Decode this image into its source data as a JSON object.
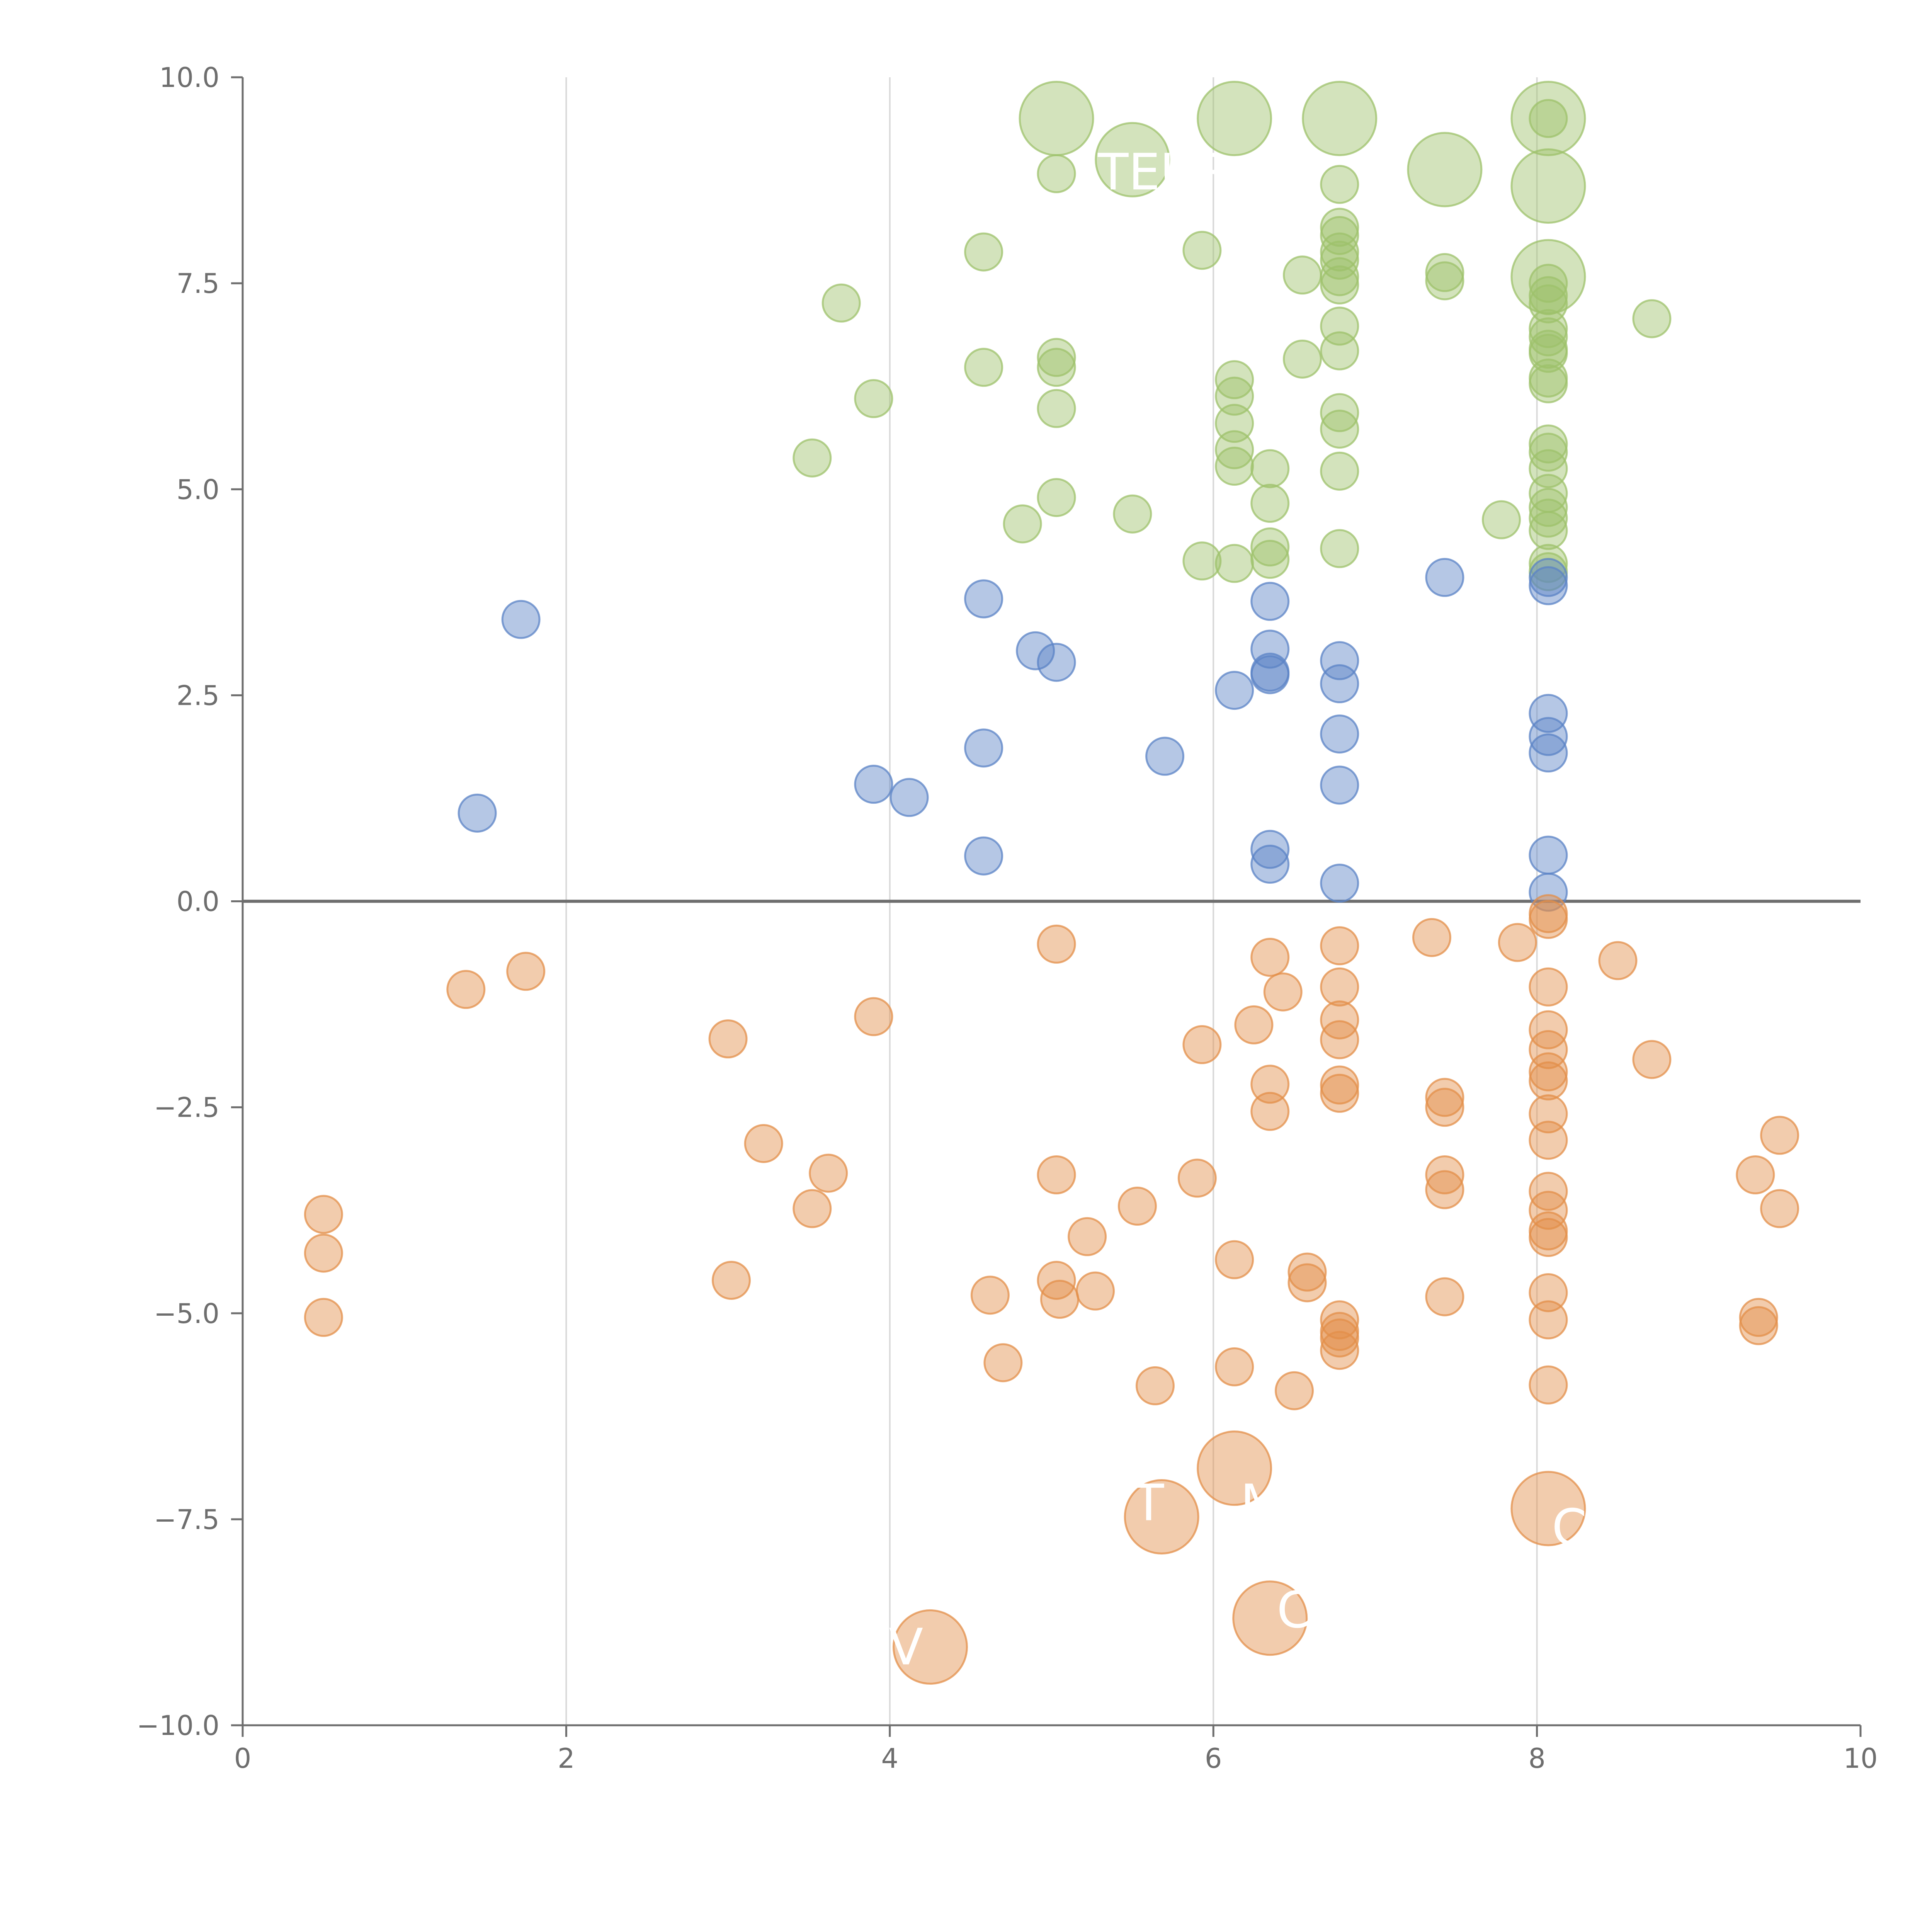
{
  "chart_data": {
    "type": "scatter",
    "title": "",
    "xlabel": "",
    "ylabel": "",
    "xlim": [
      0,
      10
    ],
    "ylim": [
      -10,
      10
    ],
    "x_ticks": [
      "0",
      "2",
      "4",
      "6",
      "8",
      "10"
    ],
    "y_ticks": [
      "10.0",
      "7.5",
      "5.0",
      "2.5",
      "0.0",
      "−2.5",
      "−5.0",
      "−7.5",
      "−10.0"
    ],
    "vertical_gridlines_at": [
      2,
      4,
      6,
      8
    ],
    "zero_line": true,
    "colors": {
      "green": "#9dc26b",
      "blue": "#5b83c6",
      "orange": "#e38f4a",
      "axis": "#6e6e6e",
      "grid": "#d9d9d9",
      "label": "#ffffff"
    },
    "series": [
      {
        "name": "green",
        "points": [
          [
            5.03,
            9.5,
            "big"
          ],
          [
            6.13,
            9.5,
            "big"
          ],
          [
            6.78,
            9.5,
            "big"
          ],
          [
            8.07,
            9.5,
            "big"
          ],
          [
            5.5,
            9.0,
            "big"
          ],
          [
            7.43,
            8.88,
            "big"
          ],
          [
            8.07,
            8.68,
            "big"
          ],
          [
            8.07,
            7.58,
            "big"
          ],
          [
            8.07,
            9.5
          ],
          [
            5.03,
            8.83
          ],
          [
            6.78,
            8.7
          ],
          [
            6.78,
            8.18
          ],
          [
            6.78,
            8.08
          ],
          [
            6.78,
            7.88
          ],
          [
            6.78,
            7.78
          ],
          [
            6.78,
            7.58
          ],
          [
            6.78,
            7.48
          ],
          [
            4.58,
            7.88
          ],
          [
            5.93,
            7.9
          ],
          [
            6.55,
            7.6
          ],
          [
            7.43,
            7.63
          ],
          [
            7.43,
            7.53
          ],
          [
            8.07,
            7.5
          ],
          [
            8.07,
            7.35
          ],
          [
            8.07,
            7.25
          ],
          [
            8.07,
            6.95
          ],
          [
            8.07,
            6.85
          ],
          [
            8.07,
            6.7
          ],
          [
            8.07,
            6.65
          ],
          [
            8.07,
            6.35
          ],
          [
            8.07,
            6.28
          ],
          [
            8.71,
            7.07
          ],
          [
            3.7,
            7.26
          ],
          [
            6.78,
            6.98
          ],
          [
            6.78,
            6.68
          ],
          [
            5.03,
            6.6
          ],
          [
            5.03,
            6.48
          ],
          [
            4.58,
            6.48
          ],
          [
            6.55,
            6.58
          ],
          [
            6.13,
            6.33
          ],
          [
            6.13,
            6.13
          ],
          [
            3.9,
            6.1
          ],
          [
            5.03,
            5.98
          ],
          [
            6.78,
            5.93
          ],
          [
            6.78,
            5.73
          ],
          [
            6.13,
            5.8
          ],
          [
            6.13,
            5.48
          ],
          [
            6.13,
            5.28
          ],
          [
            8.07,
            5.55
          ],
          [
            8.07,
            5.45
          ],
          [
            8.07,
            5.25
          ],
          [
            8.07,
            4.95
          ],
          [
            8.07,
            4.78
          ],
          [
            8.07,
            4.65
          ],
          [
            8.07,
            4.5
          ],
          [
            8.07,
            4.1
          ],
          [
            8.07,
            4.0
          ],
          [
            3.52,
            5.38
          ],
          [
            6.35,
            5.25
          ],
          [
            6.78,
            5.22
          ],
          [
            5.03,
            4.9
          ],
          [
            6.35,
            4.83
          ],
          [
            5.5,
            4.7
          ],
          [
            4.82,
            4.58
          ],
          [
            7.78,
            4.63
          ],
          [
            6.35,
            4.3
          ],
          [
            6.35,
            4.15
          ],
          [
            6.78,
            4.28
          ],
          [
            5.93,
            4.13
          ],
          [
            6.13,
            4.1
          ]
        ]
      },
      {
        "name": "blue",
        "points": [
          [
            1.72,
            3.42
          ],
          [
            1.45,
            1.07
          ],
          [
            4.58,
            3.67
          ],
          [
            4.9,
            3.04
          ],
          [
            5.03,
            2.9
          ],
          [
            3.9,
            1.42
          ],
          [
            4.12,
            1.26
          ],
          [
            4.58,
            1.86
          ],
          [
            4.58,
            0.55
          ],
          [
            5.7,
            1.76
          ],
          [
            6.13,
            2.56
          ],
          [
            6.35,
            3.64
          ],
          [
            6.35,
            3.06
          ],
          [
            6.35,
            2.78
          ],
          [
            6.35,
            2.75
          ],
          [
            6.35,
            0.63
          ],
          [
            6.35,
            0.45
          ],
          [
            6.78,
            2.92
          ],
          [
            6.78,
            2.64
          ],
          [
            6.78,
            2.03
          ],
          [
            6.78,
            1.41
          ],
          [
            6.78,
            0.22
          ],
          [
            7.43,
            3.93
          ],
          [
            8.07,
            3.93
          ],
          [
            8.07,
            3.83
          ],
          [
            8.07,
            2.28
          ],
          [
            8.07,
            2.0
          ],
          [
            8.07,
            1.8
          ],
          [
            8.07,
            0.56
          ],
          [
            8.07,
            0.11
          ]
        ]
      },
      {
        "name": "orange",
        "points": [
          [
            5.68,
            -7.47,
            "big"
          ],
          [
            6.13,
            -6.88,
            "big"
          ],
          [
            8.07,
            -7.37,
            "big"
          ],
          [
            6.35,
            -8.7,
            "big"
          ],
          [
            4.25,
            -9.05,
            "big"
          ],
          [
            0.5,
            -3.8
          ],
          [
            0.5,
            -4.27
          ],
          [
            0.5,
            -5.05
          ],
          [
            1.38,
            -1.07
          ],
          [
            1.75,
            -0.85
          ],
          [
            3.0,
            -1.67
          ],
          [
            3.22,
            -2.94
          ],
          [
            3.02,
            -4.6
          ],
          [
            3.52,
            -3.73
          ],
          [
            3.62,
            -3.3
          ],
          [
            3.9,
            -1.4
          ],
          [
            4.62,
            -4.78
          ],
          [
            4.7,
            -5.6
          ],
          [
            5.03,
            -0.52
          ],
          [
            5.03,
            -3.32
          ],
          [
            5.03,
            -4.6
          ],
          [
            5.05,
            -4.83
          ],
          [
            5.22,
            -4.07
          ],
          [
            5.27,
            -4.73
          ],
          [
            5.53,
            -3.7
          ],
          [
            5.64,
            -5.88
          ],
          [
            5.9,
            -3.36
          ],
          [
            5.93,
            -1.74
          ],
          [
            6.13,
            -4.35
          ],
          [
            6.13,
            -5.65
          ],
          [
            6.25,
            -1.5
          ],
          [
            6.35,
            -0.68
          ],
          [
            6.35,
            -2.22
          ],
          [
            6.35,
            -2.55
          ],
          [
            6.43,
            -1.1
          ],
          [
            6.5,
            -5.94
          ],
          [
            6.58,
            -4.5
          ],
          [
            6.58,
            -4.63
          ],
          [
            6.78,
            -0.54
          ],
          [
            6.78,
            -1.04
          ],
          [
            6.78,
            -1.44
          ],
          [
            6.78,
            -1.68
          ],
          [
            6.78,
            -2.23
          ],
          [
            6.78,
            -2.33
          ],
          [
            6.78,
            -5.08
          ],
          [
            6.78,
            -5.22
          ],
          [
            6.78,
            -5.3
          ],
          [
            6.78,
            -5.45
          ],
          [
            7.35,
            -0.44
          ],
          [
            7.43,
            -2.38
          ],
          [
            7.43,
            -2.5
          ],
          [
            7.43,
            -3.32
          ],
          [
            7.43,
            -3.5
          ],
          [
            7.43,
            -4.8
          ],
          [
            7.88,
            -0.5
          ],
          [
            8.07,
            -0.15
          ],
          [
            8.07,
            -0.22
          ],
          [
            8.07,
            -1.04
          ],
          [
            8.07,
            -1.56
          ],
          [
            8.07,
            -1.8
          ],
          [
            8.07,
            -2.07
          ],
          [
            8.07,
            -2.18
          ],
          [
            8.07,
            -2.58
          ],
          [
            8.07,
            -2.9
          ],
          [
            8.07,
            -3.52
          ],
          [
            8.07,
            -3.75
          ],
          [
            8.07,
            -4.0
          ],
          [
            8.07,
            -4.08
          ],
          [
            8.07,
            -4.75
          ],
          [
            8.07,
            -5.08
          ],
          [
            8.07,
            -5.87
          ],
          [
            8.5,
            -0.72
          ],
          [
            8.71,
            -1.92
          ],
          [
            9.35,
            -3.32
          ],
          [
            9.37,
            -5.05
          ],
          [
            9.37,
            -5.15
          ],
          [
            9.5,
            -2.84
          ],
          [
            9.5,
            -3.73
          ]
        ]
      }
    ],
    "bubble_labels": [
      {
        "text": "TEUR",
        "x": 5.7,
        "y": 8.85,
        "series": "green"
      },
      {
        "text": "T",
        "x": 5.6,
        "y": -7.3,
        "series": "orange"
      },
      {
        "text": "M",
        "x": 6.3,
        "y": -7.3,
        "series": "orange"
      },
      {
        "text": "C",
        "x": 6.5,
        "y": -8.6,
        "series": "orange"
      },
      {
        "text": "C",
        "x": 8.2,
        "y": -7.6,
        "series": "orange"
      },
      {
        "text": "V",
        "x": 4.1,
        "y": -9.05,
        "series": "orange"
      }
    ]
  }
}
